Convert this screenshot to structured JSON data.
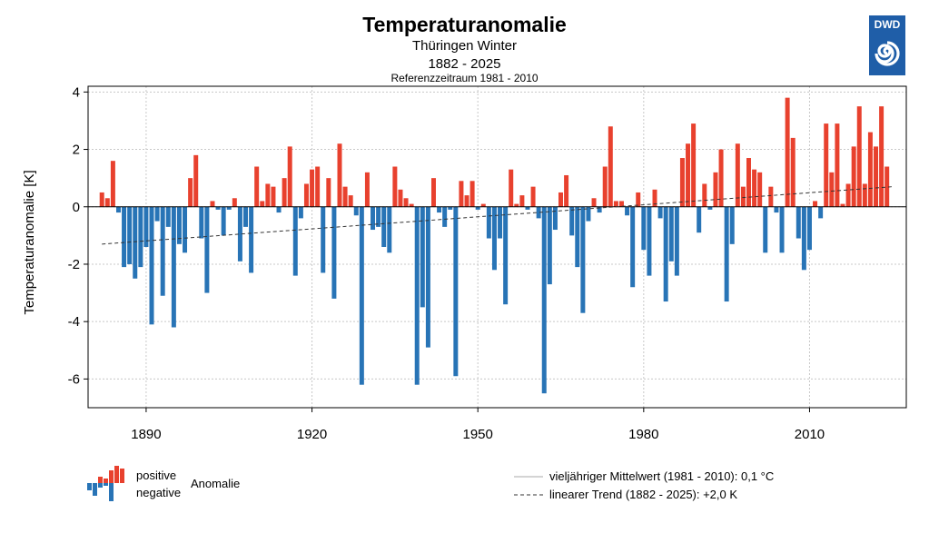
{
  "header": {
    "title": "Temperaturanomalie",
    "region": "Thüringen Winter",
    "period": "1882 - 2025",
    "reference": "Referenzzeitraum 1981 - 2010"
  },
  "logo": {
    "text": "DWD"
  },
  "legend": {
    "positive": "positive",
    "negative": "negative",
    "anomaly": "Anomalie",
    "mean_line": "vieljähriger Mittelwert (1981 - 2010): 0,1 °C",
    "trend_line": "linearer Trend (1882 - 2025): +2,0 K"
  },
  "colors": {
    "positive": "#e8412e",
    "negative": "#2874b6",
    "grid": "#c8c8c8",
    "trend": "#333333",
    "logo": "#1f5ea8"
  },
  "chart_data": {
    "type": "bar",
    "title": "Temperaturanomalie",
    "ylabel": "Temperaturanomalie [K]",
    "xlabel": "",
    "ylim": [
      -7,
      4.2
    ],
    "xlim": [
      1879.5,
      2027.5
    ],
    "yticks": [
      4,
      2,
      0,
      -2,
      -4,
      -6
    ],
    "ytick_labels": [
      "4",
      "2",
      "0",
      "-2",
      "-4",
      "-6"
    ],
    "xticks": [
      1890,
      1920,
      1950,
      1980,
      2010
    ],
    "xtick_labels": [
      "1890",
      "1920",
      "1950",
      "1980",
      "2010"
    ],
    "start_year": 1882,
    "end_year": 2025,
    "values": [
      0.5,
      0.3,
      1.6,
      -0.2,
      -2.1,
      -2.0,
      -2.5,
      -2.1,
      -1.4,
      -4.1,
      -0.5,
      -3.1,
      -0.7,
      -4.2,
      -1.3,
      -1.6,
      1.0,
      1.8,
      -1.1,
      -3.0,
      0.2,
      -0.1,
      -1.0,
      -0.1,
      0.3,
      -1.9,
      -0.7,
      -2.3,
      1.4,
      0.2,
      0.8,
      0.7,
      -0.2,
      1.0,
      2.1,
      -2.4,
      -0.4,
      0.8,
      1.3,
      1.4,
      -2.3,
      1.0,
      -3.2,
      2.2,
      0.7,
      0.4,
      -0.3,
      -6.2,
      1.2,
      -0.8,
      -0.7,
      -1.4,
      -1.6,
      1.4,
      0.6,
      0.3,
      0.1,
      -6.2,
      -3.5,
      -4.9,
      1.0,
      -0.2,
      -0.7,
      -0.1,
      -5.9,
      0.9,
      0.4,
      0.9,
      -0.1,
      0.1,
      -1.1,
      -2.2,
      -1.1,
      -3.4,
      1.3,
      0.1,
      0.4,
      -0.1,
      0.7,
      -0.4,
      -6.5,
      -2.7,
      -0.8,
      0.5,
      1.1,
      -1.0,
      -2.1,
      -3.7,
      -0.5,
      0.3,
      -0.2,
      1.4,
      2.8,
      0.2,
      0.2,
      -0.3,
      -2.8,
      0.5,
      -1.5,
      -2.4,
      0.6,
      -0.4,
      -3.3,
      -1.9,
      -2.4,
      1.7,
      2.2,
      2.9,
      -0.9,
      0.8,
      -0.1,
      1.2,
      2.0,
      -3.3,
      -1.3,
      2.2,
      0.7,
      1.7,
      1.3,
      1.2,
      -1.6,
      0.7,
      -0.2,
      -1.6,
      3.8,
      2.4,
      -1.1,
      -2.2,
      -1.5,
      0.2,
      -0.4,
      2.9,
      1.2,
      2.9,
      0.1,
      0.8,
      2.1,
      3.5,
      0.8,
      2.6,
      2.1,
      3.5,
      1.4
    ],
    "trend": {
      "start_value": -1.3,
      "end_value": 0.7
    },
    "mean_value": 0.1,
    "grid": true,
    "legend_position": "bottom"
  }
}
